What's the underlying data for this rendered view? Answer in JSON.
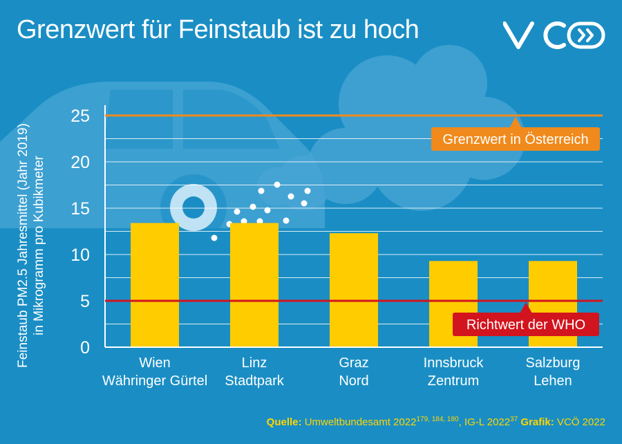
{
  "header": {
    "title": "Grenzwert für Feinstaub ist zu hoch",
    "logo_text": "VCÖ"
  },
  "colors": {
    "background": "#1a8ec4",
    "bar": "#ffcc00",
    "limit_line": "#f08a1c",
    "who_line": "#d2141e",
    "text": "#ffffff",
    "source_text": "#ffd500"
  },
  "decor": {
    "background_icons": [
      "car-icon",
      "cloud-icon",
      "exhaust-dots-icon"
    ]
  },
  "chart_data": {
    "type": "bar",
    "ylabel": [
      "Feinstaub PM2.5 Jahresmittel (Jahr 2019)",
      "in Mikrogramm pro Kubikmeter"
    ],
    "xlabel": "",
    "ylim": [
      0,
      27
    ],
    "yticks": [
      0,
      5,
      10,
      15,
      20,
      25
    ],
    "grid": true,
    "categories": [
      [
        "Wien",
        "Währinger Gürtel"
      ],
      [
        "Linz",
        "Stadtpark"
      ],
      [
        "Graz",
        "Nord"
      ],
      [
        "Innsbruck",
        "Zentrum"
      ],
      [
        "Salzburg",
        "Lehen"
      ]
    ],
    "values": [
      13.4,
      13.4,
      12.3,
      9.3,
      9.3
    ],
    "reference_lines": [
      {
        "label": "Grenzwert in Österreich",
        "value": 25,
        "color": "#f08a1c"
      },
      {
        "label": "Richtwert der WHO",
        "value": 5,
        "color": "#d2141e"
      }
    ]
  },
  "source": {
    "quelle_label": "Quelle:",
    "quelle_text": "Umweltbundesamt 2022",
    "quelle_refs": "179, 184, 180",
    "igl_text": ", IG-L 2022",
    "igl_ref": "37",
    "grafik_label": "Grafik:",
    "grafik_text": "VCÖ 2022"
  }
}
